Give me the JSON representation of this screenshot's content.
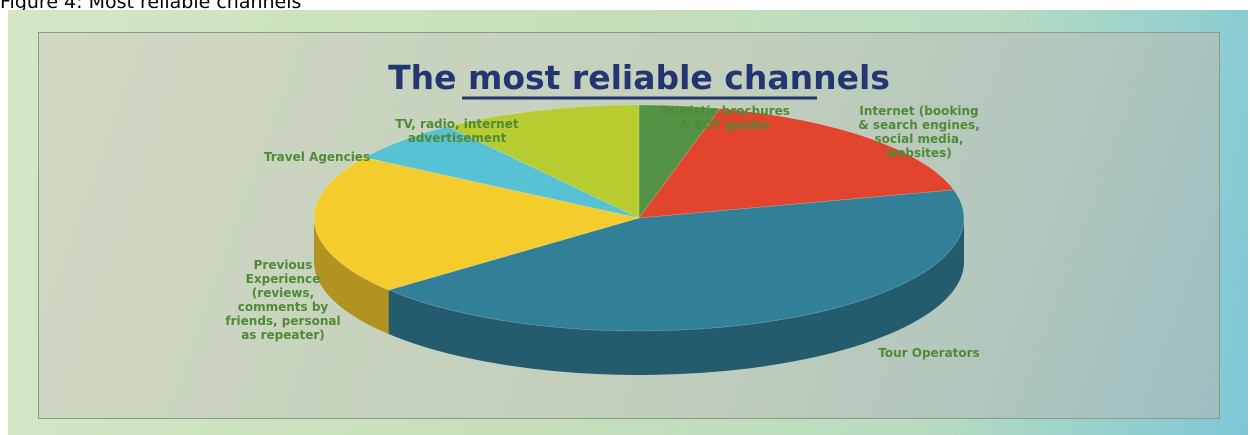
{
  "figure_caption": "Figure 4: Most reliable channels",
  "colors": {
    "tour_operators": "#327f98",
    "previous_experience": "#f4cc2c",
    "travel_agencies": "#57c2d3",
    "tv_radio": "#b6cc31",
    "touristic_brochures": "#549245",
    "internet": "#e2442d",
    "title": "#233672",
    "labels": "#4f8a34"
  },
  "chart_data": {
    "type": "pie",
    "title": "The most reliable channels",
    "legend": "none",
    "slices": [
      {
        "label": "Touristic brochures & EOT guides",
        "label_lines": [
          "Touristic brochures",
          "& EOT guides"
        ],
        "value": 4,
        "color_key": "touristic_brochures"
      },
      {
        "label": "Internet (booking & search engines, social media, websites)",
        "label_lines": [
          "Internet (booking",
          "& search engines,",
          "social media,",
          "websites)"
        ],
        "value": 17,
        "color_key": "internet"
      },
      {
        "label": "Tour Operators",
        "label_lines": [
          "Tour Operators"
        ],
        "value": 43,
        "color_key": "tour_operators"
      },
      {
        "label": "Previous Experience (reviews, comments by friends, personal as repeater)",
        "label_lines": [
          "Previous",
          "Experience",
          "(reviews,",
          "comments by",
          "friends, personal",
          "as repeater)"
        ],
        "value": 20,
        "color_key": "previous_experience"
      },
      {
        "label": "Travel Agencies",
        "label_lines": [
          "Travel Agencies"
        ],
        "value": 6,
        "color_key": "travel_agencies"
      },
      {
        "label": "TV, radio, internet advertisement",
        "label_lines": [
          "TV, radio, internet",
          "advertisement"
        ],
        "value": 10,
        "color_key": "tv_radio"
      }
    ]
  }
}
